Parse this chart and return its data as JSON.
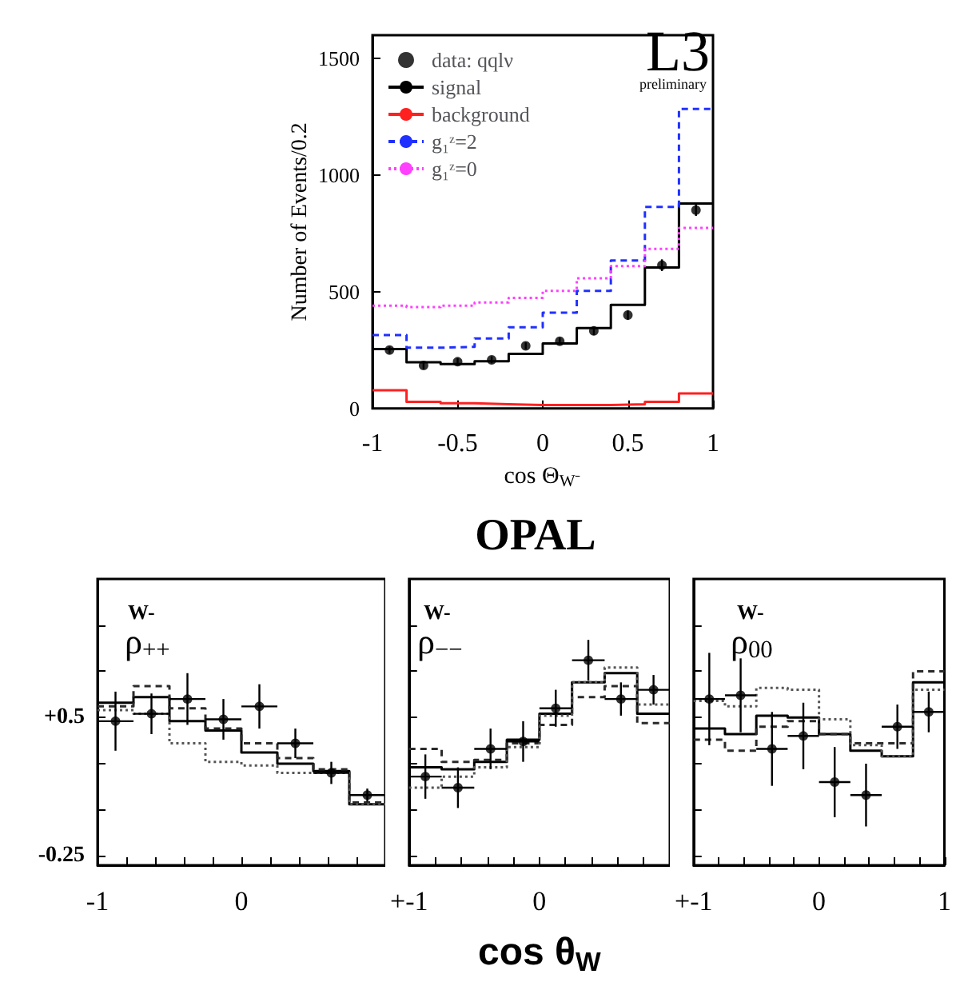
{
  "chart_data": [
    {
      "type": "histogram",
      "xlabel": "cos Θ$_{W⁻}$",
      "ylabel": "Number of Events/0.2",
      "annotations": [
        "L3",
        "preliminary"
      ],
      "bins": [
        -1,
        -0.8,
        -0.6,
        -0.4,
        -0.2,
        0,
        0.2,
        0.4,
        0.6,
        0.8,
        1
      ],
      "xlim": [
        -1,
        1
      ],
      "xticks": [
        -1,
        -0.5,
        0,
        0.5,
        1
      ],
      "ylim": [
        0,
        1600
      ],
      "yticks": [
        0,
        500,
        1000,
        1500
      ],
      "legend": "top left",
      "series": [
        {
          "name": "data: qqlν",
          "type": "scatter",
          "color": "#000000",
          "marker": "circle",
          "x": [
            -0.9,
            -0.7,
            -0.5,
            -0.3,
            -0.1,
            0.1,
            0.3,
            0.5,
            0.7,
            0.9
          ],
          "values": [
            250,
            184,
            200,
            208,
            268,
            288,
            332,
            400,
            614,
            850
          ],
          "errors": [
            15,
            15,
            15,
            15,
            15,
            15,
            18,
            20,
            25,
            25
          ]
        },
        {
          "name": "signal",
          "color": "#000000",
          "line_style": "solid",
          "values": [
            254,
            198,
            190,
            202,
            234,
            278,
            344,
            444,
            604,
            878
          ]
        },
        {
          "name": "background",
          "color": "#ff2020",
          "line_style": "solid",
          "values": [
            78,
            28,
            22,
            18,
            14,
            14,
            14,
            18,
            28,
            64
          ]
        },
        {
          "name": "g₁ᶻ=2",
          "color": "#2030ff",
          "line_style": "dashed",
          "values": [
            314,
            260,
            264,
            300,
            348,
            410,
            504,
            634,
            864,
            1284
          ]
        },
        {
          "name": "g₁ᶻ=0",
          "color": "#ff40ff",
          "line_style": "dotted",
          "values": [
            440,
            434,
            440,
            454,
            474,
            504,
            558,
            610,
            684,
            774
          ]
        }
      ]
    },
    {
      "type": "histogram",
      "annotations": [
        "W-",
        "ρ$_{++}$"
      ],
      "bins": [
        -1,
        -0.75,
        -0.5,
        -0.25,
        0,
        0.25,
        0.5,
        0.75,
        1
      ],
      "xlim": [
        -1,
        1
      ],
      "xticks": [
        {
          "value": -1,
          "label": "-1"
        },
        {
          "value": -0.8,
          "label": null
        },
        {
          "value": -0.6,
          "label": null
        },
        {
          "value": -0.4,
          "label": null
        },
        {
          "value": -0.2,
          "label": null
        },
        {
          "value": 0,
          "label": "0"
        },
        {
          "value": 0.2,
          "label": null
        },
        {
          "value": 0.4,
          "label": null
        },
        {
          "value": 0.6,
          "label": null
        },
        {
          "value": 0.8,
          "label": null
        },
        {
          "value": 1,
          "label": null
        }
      ],
      "ylim": [
        -0.3,
        1.25
      ],
      "yticks": [
        {
          "value": -0.25,
          "label": "-0.25"
        },
        {
          "value": 0,
          "label": null
        },
        {
          "value": 0.25,
          "label": null
        },
        {
          "value": 0.5,
          "label": "+0.5"
        },
        {
          "value": 0.75,
          "label": null
        },
        {
          "value": 1,
          "label": null
        }
      ],
      "series": [
        {
          "type": "scatter",
          "color": "#000000",
          "marker": "circle",
          "x": [
            -0.875,
            -0.625,
            -0.375,
            -0.125,
            0.125,
            0.375,
            0.625,
            0.875
          ],
          "values": [
            0.48,
            0.52,
            0.6,
            0.49,
            0.56,
            0.36,
            0.2,
            0.08
          ],
          "errors": [
            0.16,
            0.11,
            0.14,
            0.11,
            0.12,
            0.08,
            0.06,
            0.035
          ],
          "xerrors": [
            0.125,
            0.125,
            0.125,
            0.125,
            0.125,
            0.125,
            0.125,
            0.125
          ]
        },
        {
          "color": "#000000",
          "line_style": "solid",
          "values": [
            0.58,
            0.61,
            0.48,
            0.43,
            0.31,
            0.25,
            0.21,
            0.03
          ]
        },
        {
          "color": "#2a2a2a",
          "line_style": "dashed",
          "values": [
            0.56,
            0.67,
            0.55,
            0.44,
            0.36,
            0.28,
            0.22,
            0.04
          ]
        },
        {
          "color": "#555555",
          "line_style": "dotted",
          "values": [
            0.54,
            0.52,
            0.36,
            0.26,
            0.24,
            0.2,
            0.2,
            0.03
          ]
        }
      ]
    },
    {
      "type": "histogram",
      "title": "OPAL",
      "xlabel": "cos θ$_{W}$",
      "annotations": [
        "W-",
        "ρ$_{−−}$"
      ],
      "bins": [
        -1,
        -0.75,
        -0.5,
        -0.25,
        0,
        0.25,
        0.5,
        0.75,
        1
      ],
      "tick_labels": "x",
      "xlim": [
        -1,
        1
      ],
      "xticks": [
        {
          "value": -1,
          "label": "+-1"
        },
        {
          "value": -0.8,
          "label": null
        },
        {
          "value": -0.6,
          "label": null
        },
        {
          "value": -0.4,
          "label": null
        },
        {
          "value": -0.2,
          "label": null
        },
        {
          "value": 0,
          "label": "0"
        },
        {
          "value": 0.2,
          "label": null
        },
        {
          "value": 0.4,
          "label": null
        },
        {
          "value": 0.6,
          "label": null
        },
        {
          "value": 0.8,
          "label": null
        },
        {
          "value": 1,
          "label": null
        }
      ],
      "ylim": [
        -0.3,
        1.25
      ],
      "yticks": [
        {
          "value": -0.25,
          "label": null
        },
        {
          "value": 0,
          "label": null
        },
        {
          "value": 0.25,
          "label": null
        },
        {
          "value": 0.5,
          "label": null
        },
        {
          "value": 0.75,
          "label": null
        },
        {
          "value": 1,
          "label": null
        }
      ],
      "series": [
        {
          "type": "scatter",
          "color": "#000000",
          "marker": "circle",
          "x": [
            -0.875,
            -0.625,
            -0.375,
            -0.125,
            0.125,
            0.375,
            0.625,
            0.875
          ],
          "values": [
            0.18,
            0.12,
            0.33,
            0.37,
            0.55,
            0.81,
            0.6,
            0.65
          ],
          "errors": [
            0.12,
            0.11,
            0.11,
            0.11,
            0.1,
            0.11,
            0.09,
            0.08
          ],
          "xerrors": [
            0.125,
            0.125,
            0.125,
            0.125,
            0.125,
            0.125,
            0.125,
            0.125
          ]
        },
        {
          "color": "#000000",
          "line_style": "solid",
          "values": [
            0.23,
            0.22,
            0.26,
            0.38,
            0.52,
            0.69,
            0.74,
            0.52
          ]
        },
        {
          "color": "#2a2a2a",
          "line_style": "dashed",
          "values": [
            0.33,
            0.26,
            0.27,
            0.36,
            0.46,
            0.61,
            0.67,
            0.47
          ]
        },
        {
          "color": "#555555",
          "line_style": "dotted",
          "values": [
            0.12,
            0.18,
            0.23,
            0.34,
            0.51,
            0.69,
            0.77,
            0.57
          ]
        }
      ]
    },
    {
      "type": "histogram",
      "annotations": [
        "W-",
        "ρ$_{00}$"
      ],
      "bins": [
        -1,
        -0.75,
        -0.5,
        -0.25,
        0,
        0.25,
        0.5,
        0.75,
        1
      ],
      "tick_labels": "x",
      "xlim": [
        -1,
        1
      ],
      "xticks": [
        {
          "value": -1,
          "label": "+-1"
        },
        {
          "value": -0.8,
          "label": null
        },
        {
          "value": -0.6,
          "label": null
        },
        {
          "value": -0.4,
          "label": null
        },
        {
          "value": -0.2,
          "label": null
        },
        {
          "value": 0,
          "label": "0"
        },
        {
          "value": 0.2,
          "label": null
        },
        {
          "value": 0.4,
          "label": null
        },
        {
          "value": 0.6,
          "label": null
        },
        {
          "value": 0.8,
          "label": null
        },
        {
          "value": 1,
          "label": "1"
        }
      ],
      "ylim": [
        -0.3,
        1.25
      ],
      "yticks": [
        {
          "value": -0.25,
          "label": null
        },
        {
          "value": 0,
          "label": null
        },
        {
          "value": 0.25,
          "label": null
        },
        {
          "value": 0.5,
          "label": null
        },
        {
          "value": 0.75,
          "label": null
        },
        {
          "value": 1,
          "label": null
        }
      ],
      "series": [
        {
          "type": "scatter",
          "color": "#000000",
          "marker": "circle",
          "x": [
            -0.875,
            -0.625,
            -0.375,
            -0.125,
            0.125,
            0.375,
            0.625,
            0.875
          ],
          "values": [
            0.6,
            0.62,
            0.33,
            0.4,
            0.15,
            0.08,
            0.45,
            0.53
          ],
          "errors": [
            0.25,
            0.2,
            0.2,
            0.18,
            0.19,
            0.17,
            0.12,
            0.11
          ],
          "xerrors": [
            0.125,
            0.125,
            0.125,
            0.125,
            0.125,
            0.125,
            0.125,
            0.125
          ]
        },
        {
          "color": "#000000",
          "line_style": "solid",
          "values": [
            0.44,
            0.41,
            0.51,
            0.5,
            0.41,
            0.32,
            0.29,
            0.69
          ]
        },
        {
          "color": "#2a2a2a",
          "line_style": "dashed",
          "values": [
            0.38,
            0.32,
            0.45,
            0.48,
            0.41,
            0.36,
            0.36,
            0.75
          ]
        },
        {
          "color": "#555555",
          "line_style": "dotted",
          "values": [
            0.59,
            0.56,
            0.66,
            0.65,
            0.49,
            0.35,
            0.29,
            0.65
          ]
        }
      ]
    }
  ]
}
